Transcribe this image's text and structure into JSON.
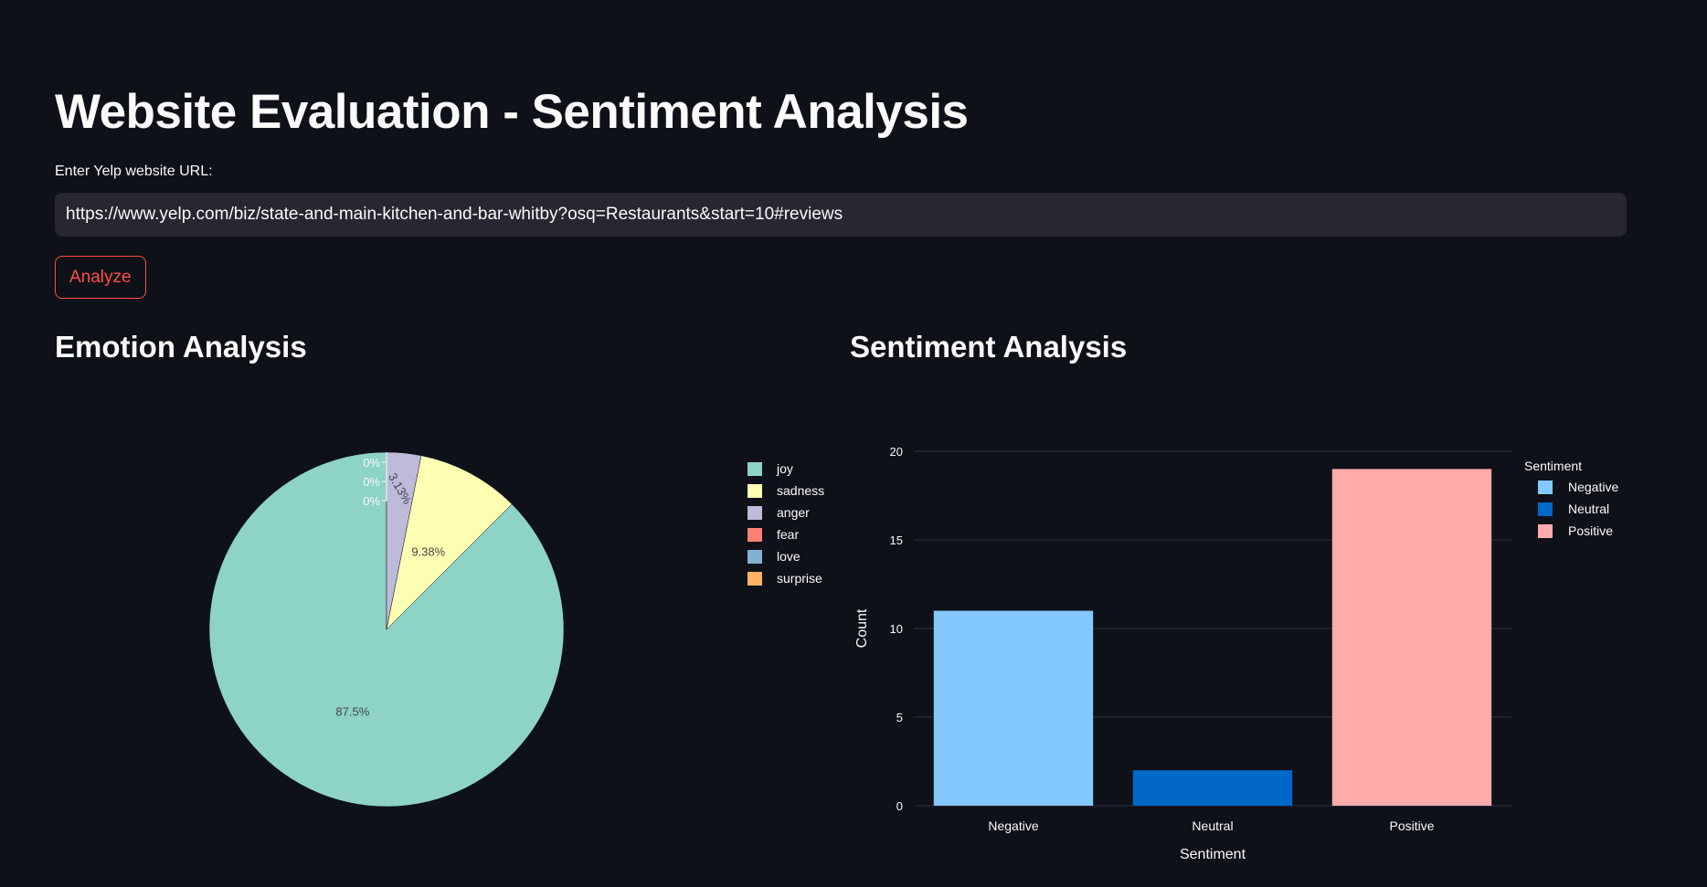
{
  "header": {
    "title": "Website Evaluation - Sentiment Analysis"
  },
  "url_field": {
    "label": "Enter Yelp website URL:",
    "value": "https://www.yelp.com/biz/state-and-main-kitchen-and-bar-whitby?osq=Restaurants&start=10#reviews"
  },
  "analyze_button": {
    "label": "Analyze",
    "color": "#ff4b4b"
  },
  "emotion_section": {
    "title": "Emotion Analysis"
  },
  "sentiment_section": {
    "title": "Sentiment Analysis"
  },
  "chart_data": [
    {
      "type": "pie",
      "title": "",
      "labels": [
        "joy",
        "sadness",
        "anger",
        "fear",
        "love",
        "surprise"
      ],
      "values": [
        87.5,
        9.38,
        3.13,
        0,
        0,
        0
      ],
      "slice_labels": [
        "87.5%",
        "9.38%",
        "3.13%",
        "0%",
        "0%",
        "0%"
      ],
      "colors": [
        "#8dd3c7",
        "#ffffb3",
        "#bebada",
        "#fb8072",
        "#80b1d3",
        "#fdb462"
      ],
      "legend": "right",
      "direction": "counterclockwise",
      "start": "top"
    },
    {
      "type": "bar",
      "title": "",
      "categories": [
        "Negative",
        "Neutral",
        "Positive"
      ],
      "values": [
        11,
        2,
        19
      ],
      "colors": [
        "#83c9ff",
        "#0068c9",
        "#ffabab"
      ],
      "xlabel": "Sentiment",
      "ylabel": "Count",
      "ylim": [
        0,
        20
      ],
      "yticks": [
        "0",
        "5",
        "10",
        "15",
        "20"
      ],
      "legend_title": "Sentiment",
      "legend": "top-right",
      "grid": true
    }
  ]
}
